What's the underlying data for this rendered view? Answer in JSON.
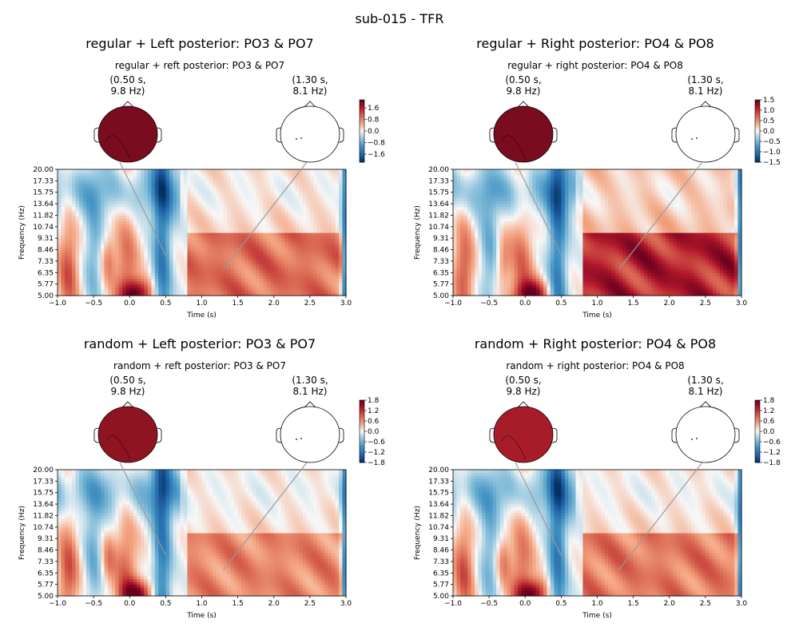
{
  "figure_title": "sub-015 - TFR",
  "colormap": {
    "name": "RdBu_r",
    "neg": "#053061",
    "mid": "#f7f7f7",
    "pos": "#67001f"
  },
  "chart_data": [
    {
      "type": "heatmap",
      "title": "regular + Left posterior: PO3 & PO7",
      "subtitle": "regular + reft posterior: PO3 & PO7",
      "xlabel": "Time (s)",
      "ylabel": "Frequency (Hz)",
      "xlim": [
        -1.0,
        3.0
      ],
      "x_ticks": [
        "−1.0",
        "−0.5",
        "0.0",
        "0.5",
        "1.0",
        "1.5",
        "2.0",
        "2.5",
        "3.0"
      ],
      "y_ticks": [
        "5.00",
        "5.77",
        "6.35",
        "7.33",
        "8.46",
        "9.31",
        "10.74",
        "11.82",
        "13.64",
        "15.75",
        "17.33",
        "20.00"
      ],
      "colorbar_ticks": [
        "1.6",
        "0.8",
        "0.0",
        "−0.8",
        "−1.6"
      ],
      "topomaps": [
        {
          "label": "(0.50 s,\n9.8 Hz)",
          "time": 0.5,
          "freq": 9.8,
          "value": 1.0,
          "fill": "#7a0c1f"
        },
        {
          "label": "(1.30 s,\n8.1 Hz)",
          "time": 1.3,
          "freq": 8.1,
          "value": 0.0,
          "fill": "#ffffff"
        }
      ],
      "intensity": 0.55
    },
    {
      "type": "heatmap",
      "title": "regular + Right posterior: PO4 & PO8",
      "subtitle": "regular + right posterior: PO4 & PO8",
      "xlabel": "Time (s)",
      "ylabel": "Frequency (Hz)",
      "xlim": [
        -1.0,
        3.0
      ],
      "x_ticks": [
        "−1.0",
        "−0.5",
        "0.0",
        "0.5",
        "1.0",
        "1.5",
        "2.0",
        "2.5",
        "3.0"
      ],
      "y_ticks": [
        "5.00",
        "5.77",
        "6.35",
        "7.33",
        "8.46",
        "9.31",
        "10.74",
        "11.82",
        "13.64",
        "15.75",
        "17.33",
        "20.00"
      ],
      "colorbar_ticks": [
        "1.5",
        "1.0",
        "0.5",
        "0.0",
        "−0.5",
        "−1.0",
        "−1.5"
      ],
      "topomaps": [
        {
          "label": "(0.50 s,\n9.8 Hz)",
          "time": 0.5,
          "freq": 9.8,
          "value": 1.0,
          "fill": "#7a0c1f"
        },
        {
          "label": "(1.30 s,\n8.1 Hz)",
          "time": 1.3,
          "freq": 8.1,
          "value": 0.0,
          "fill": "#ffffff"
        }
      ],
      "intensity": 0.9
    },
    {
      "type": "heatmap",
      "title": "random + Left posterior: PO3 & PO7",
      "subtitle": "random + reft posterior: PO3 & PO7",
      "xlabel": "Time (s)",
      "ylabel": "Frequency (Hz)",
      "xlim": [
        -1.0,
        3.0
      ],
      "x_ticks": [
        "−1.0",
        "−0.5",
        "0.0",
        "0.5",
        "1.0",
        "1.5",
        "2.0",
        "2.5",
        "3.0"
      ],
      "y_ticks": [
        "5.00",
        "5.77",
        "6.35",
        "7.33",
        "8.46",
        "9.31",
        "10.74",
        "11.82",
        "13.64",
        "15.75",
        "17.33",
        "20.00"
      ],
      "colorbar_ticks": [
        "1.8",
        "1.2",
        "0.6",
        "0.0",
        "−0.6",
        "−1.2",
        "−1.8"
      ],
      "topomaps": [
        {
          "label": "(0.50 s,\n9.8 Hz)",
          "time": 0.5,
          "freq": 9.8,
          "value": 1.0,
          "fill": "#8e1422"
        },
        {
          "label": "(1.30 s,\n8.1 Hz)",
          "time": 1.3,
          "freq": 8.1,
          "value": 0.0,
          "fill": "#ffffff"
        }
      ],
      "intensity": 0.45
    },
    {
      "type": "heatmap",
      "title": "random + Right posterior: PO4 & PO8",
      "subtitle": "random + right posterior: PO4 & PO8",
      "xlabel": "Time (s)",
      "ylabel": "Frequency (Hz)",
      "xlim": [
        -1.0,
        3.0
      ],
      "x_ticks": [
        "−1.0",
        "−0.5",
        "0.0",
        "0.5",
        "1.0",
        "1.5",
        "2.0",
        "2.5",
        "3.0"
      ],
      "y_ticks": [
        "5.00",
        "5.77",
        "6.35",
        "7.33",
        "8.46",
        "9.31",
        "10.74",
        "11.82",
        "13.64",
        "15.75",
        "17.33",
        "20.00"
      ],
      "colorbar_ticks": [
        "1.8",
        "1.2",
        "0.6",
        "0.0",
        "−0.6",
        "−1.2",
        "−1.8"
      ],
      "topomaps": [
        {
          "label": "(0.50 s,\n9.8 Hz)",
          "time": 0.5,
          "freq": 9.8,
          "value": 1.0,
          "fill": "#a81c2a"
        },
        {
          "label": "(1.30 s,\n8.1 Hz)",
          "time": 1.3,
          "freq": 8.1,
          "value": 0.0,
          "fill": "#ffffff"
        }
      ],
      "intensity": 0.5
    }
  ]
}
